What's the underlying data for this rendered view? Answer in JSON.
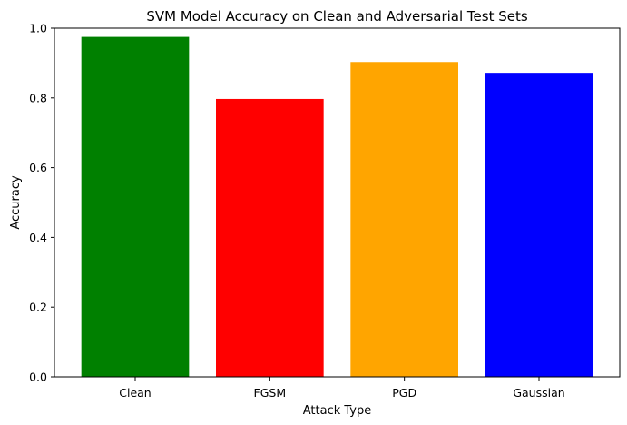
{
  "chart_data": {
    "type": "bar",
    "title": "SVM Model Accuracy on Clean and Adversarial Test Sets",
    "xlabel": "Attack Type",
    "ylabel": "Accuracy",
    "categories": [
      "Clean",
      "FGSM",
      "PGD",
      "Gaussian"
    ],
    "values": [
      0.975,
      0.797,
      0.903,
      0.872
    ],
    "colors": [
      "#008000",
      "#ff0000",
      "#ffa500",
      "#0000ff"
    ],
    "ylim": [
      0,
      1.0
    ],
    "yticks": [
      0.0,
      0.2,
      0.4,
      0.6,
      0.8,
      1.0
    ],
    "ytick_labels": [
      "0.0",
      "0.2",
      "0.4",
      "0.6",
      "0.8",
      "1.0"
    ],
    "grid": false,
    "legend": "none"
  }
}
